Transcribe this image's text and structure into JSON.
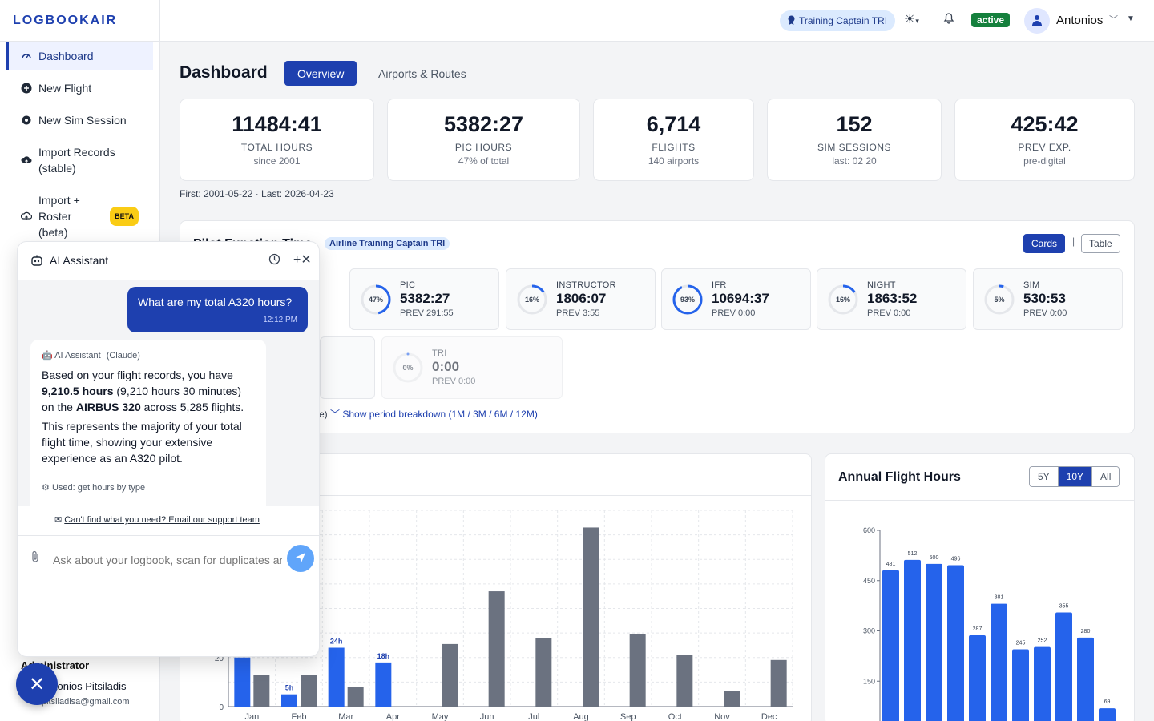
{
  "app": {
    "logo": "LOGBOOKAIR"
  },
  "sidebar": {
    "items": [
      {
        "label": "Dashboard",
        "icon": "gauge-icon"
      },
      {
        "label": "New Flight",
        "icon": "plus-circle-icon"
      },
      {
        "label": "New Sim Session",
        "icon": "gear-icon"
      },
      {
        "label": "Import Records (stable)",
        "icon": "cloud-upload-icon"
      },
      {
        "label": "Import + Roster (beta)",
        "icon": "cloud-upload-icon",
        "badge": "BETA"
      }
    ],
    "admin_label": "Administrator",
    "user_name": "Antonios Pitsiladis",
    "user_email": "pitsiladisa@gmail.com"
  },
  "topbar": {
    "role": "Training Captain TRI",
    "status": "active",
    "user_name": "Antonios"
  },
  "main": {
    "title": "Dashboard",
    "tabs": [
      "Overview",
      "Airports & Routes"
    ],
    "stats": [
      {
        "value": "11484:41",
        "label": "TOTAL HOURS",
        "sub": "since 2001"
      },
      {
        "value": "5382:27",
        "label": "PIC HOURS",
        "sub": "47% of total"
      },
      {
        "value": "6,714",
        "label": "FLIGHTS",
        "sub": "140 airports"
      },
      {
        "value": "152",
        "label": "SIM SESSIONS",
        "sub": "last: 02 20"
      },
      {
        "value": "425:42",
        "label": "PREV EXP.",
        "sub": "pre-digital"
      }
    ],
    "first_last": "First: 2001-05-22 · Last: 2026-04-23"
  },
  "pilot_function": {
    "title": "Pilot Function Time",
    "badge": "Airline Training Captain TRI",
    "view_cards": "Cards",
    "view_table": "Table",
    "cards": [
      {
        "name": "PIC",
        "value": "5382:27",
        "prev": "PREV 291:55",
        "pct": 47,
        "pct_label": "47%"
      },
      {
        "name": "INSTRUCTOR",
        "value": "1806:07",
        "prev": "PREV 3:55",
        "pct": 16,
        "pct_label": "16%"
      },
      {
        "name": "IFR",
        "value": "10694:37",
        "prev": "PREV 0:00",
        "pct": 93,
        "pct_label": "93%"
      },
      {
        "name": "NIGHT",
        "value": "1863:52",
        "prev": "PREV 0:00",
        "pct": 16,
        "pct_label": "16%"
      },
      {
        "name": "SIM",
        "value": "530:53",
        "prev": "PREV 0:00",
        "pct": 5,
        "pct_label": "5%"
      }
    ],
    "tri": {
      "name": "TRI",
      "value": "0:00",
      "prev": "PREV 0:00",
      "pct": 0,
      "pct_label": "0%"
    },
    "breakdown_link": "Show period breakdown (1M / 3M / 6M / 12M)",
    "breakdown_prefix": "e)"
  },
  "monthly": {
    "title_fragment": "s",
    "y_ticks": [
      "20",
      "0"
    ]
  },
  "annual": {
    "title": "Annual Flight Hours",
    "ranges": [
      "5Y",
      "10Y",
      "All"
    ],
    "active_range": "10Y"
  },
  "ai": {
    "title": "AI Assistant",
    "user_message": "What are my total A320 hours?",
    "user_time": "12:12 PM",
    "bot_name": "AI Assistant",
    "bot_model": "(Claude)",
    "answer_intro": "Based on your flight records, you have",
    "answer_hours": "9,210.5 hours",
    "answer_detail": "(9,210 hours 30 minutes)",
    "answer_on": "on the",
    "answer_aircraft": "AIRBUS 320",
    "answer_tail": "across 5,285 flights.",
    "answer_2": "This represents the majority of your total flight time, showing your extensive experience as an A320 pilot.",
    "tools_used": "Used: get hours by type",
    "support_link": "Can't find what you need? Email our support team",
    "input_placeholder": "Ask about your logbook, scan for duplicates and errors..."
  },
  "colors": {
    "primary": "#1e40af",
    "bar_blue": "#2563eb",
    "bar_gray": "#6b7280",
    "status_green": "#15803d"
  },
  "chart_data": [
    {
      "type": "bar",
      "categories": [
        "Jan",
        "Feb",
        "Mar",
        "Apr",
        "May",
        "Jun",
        "Jul",
        "Aug",
        "Sep",
        "Oct",
        "Nov",
        "Dec"
      ],
      "series": [
        {
          "values": [
            20,
            5,
            24,
            18,
            null,
            null,
            null,
            null,
            null,
            null,
            null,
            null
          ],
          "labels": [
            "",
            "5h",
            "24h",
            "18h",
            "",
            "",
            "",
            "",
            "",
            "",
            "",
            ""
          ],
          "color": "#2563eb"
        },
        {
          "values": [
            13,
            13,
            8,
            null,
            25.5,
            47,
            28,
            73,
            29.5,
            21,
            6.5,
            19
          ],
          "color": "#6b7280"
        }
      ],
      "y_ticks": [
        0,
        20
      ],
      "ylim": [
        0,
        80
      ],
      "grid": true
    },
    {
      "type": "bar",
      "title": "Annual Flight Hours",
      "values": [
        481,
        512,
        500,
        496,
        287,
        381,
        245,
        252,
        355,
        280,
        69
      ],
      "value_labels": [
        "481",
        "512",
        "500",
        "496",
        "287",
        "381",
        "245",
        "252",
        "355",
        "280",
        "69"
      ],
      "y_ticks": [
        150,
        300,
        450,
        600
      ],
      "ylim": [
        0,
        600
      ],
      "grid": false
    }
  ]
}
